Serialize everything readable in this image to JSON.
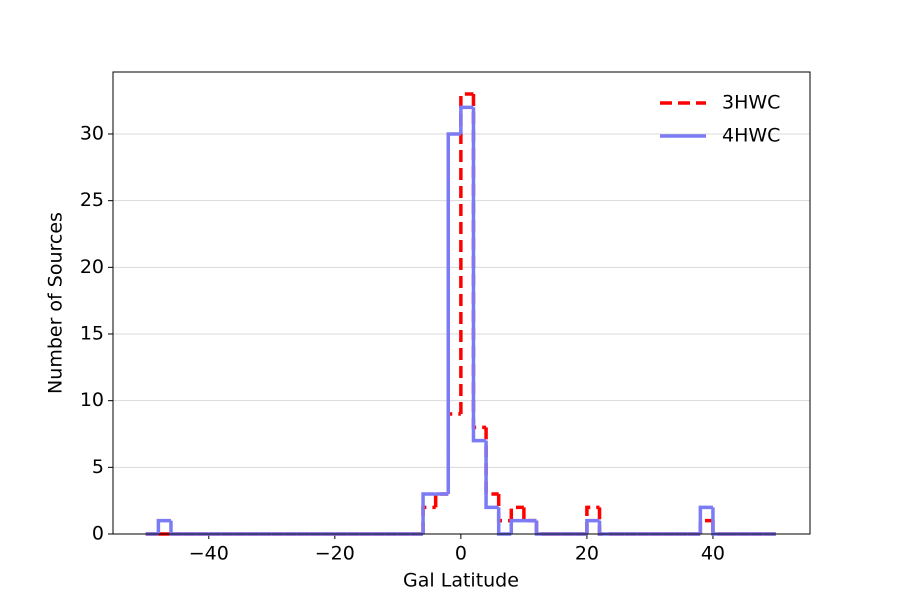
{
  "chart_data": {
    "type": "histogram",
    "xlabel": "Gal Latitude",
    "ylabel": "Number of Sources",
    "bins": [
      -50,
      -48,
      -46,
      -44,
      -42,
      -40,
      -38,
      -36,
      -34,
      -32,
      -30,
      -28,
      -26,
      -24,
      -22,
      -20,
      -18,
      -16,
      -14,
      -12,
      -10,
      -8,
      -6,
      -4,
      -2,
      0,
      2,
      4,
      6,
      8,
      10,
      12,
      14,
      16,
      18,
      20,
      22,
      24,
      26,
      28,
      30,
      32,
      34,
      36,
      38,
      40,
      42,
      44,
      46,
      48,
      50
    ],
    "series": [
      {
        "name": "3HWC",
        "color": "#ff0000",
        "dashed": true,
        "values": [
          0,
          0,
          0,
          0,
          0,
          0,
          0,
          0,
          0,
          0,
          0,
          0,
          0,
          0,
          0,
          0,
          0,
          0,
          0,
          0,
          0,
          0,
          2,
          3,
          9,
          33,
          8,
          3,
          1,
          2,
          1,
          0,
          0,
          0,
          0,
          2,
          0,
          0,
          0,
          0,
          0,
          0,
          0,
          0,
          1,
          0,
          0,
          0,
          0,
          0
        ]
      },
      {
        "name": "4HWC",
        "color": "#7b7bf5",
        "dashed": false,
        "values": [
          0,
          1,
          0,
          0,
          0,
          0,
          0,
          0,
          0,
          0,
          0,
          0,
          0,
          0,
          0,
          0,
          0,
          0,
          0,
          0,
          0,
          0,
          3,
          3,
          30,
          32,
          7,
          2,
          0,
          1,
          1,
          0,
          0,
          0,
          0,
          1,
          0,
          0,
          0,
          0,
          0,
          0,
          0,
          0,
          2,
          0,
          0,
          0,
          0,
          0
        ]
      }
    ],
    "xlim": [
      -55.2,
      55.4
    ],
    "ylim": [
      0,
      34.65
    ],
    "xticks": [
      {
        "value": -40,
        "label": "−40"
      },
      {
        "value": -20,
        "label": "−20"
      },
      0,
      20,
      40
    ],
    "yticks": [
      0,
      5,
      10,
      15,
      20,
      25,
      30
    ],
    "grid": "y",
    "legend": "upper right"
  }
}
